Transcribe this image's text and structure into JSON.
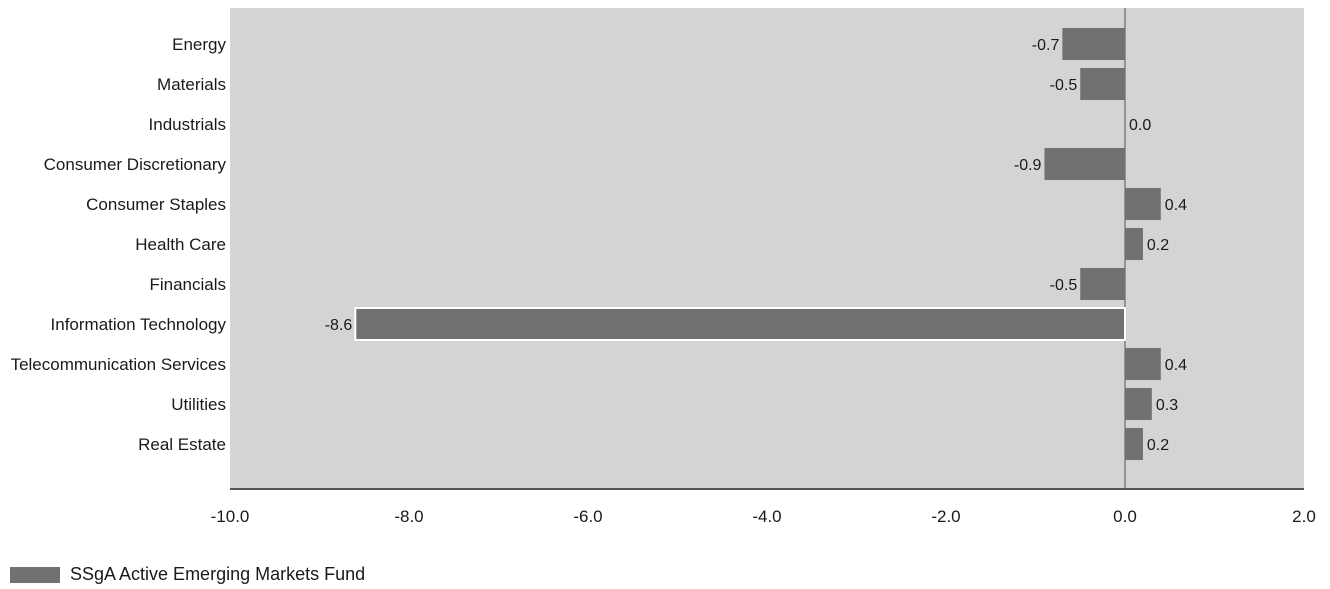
{
  "colors": {
    "plot_background": "#d4d4d4",
    "bar": "#717171",
    "bar_highlight_border": "#ffffff",
    "axis": "#555555"
  },
  "chart_data": {
    "type": "bar",
    "orientation": "horizontal",
    "categories": [
      "Energy",
      "Materials",
      "Industrials",
      "Consumer Discretionary",
      "Consumer Staples",
      "Health Care",
      "Financials",
      "Information Technology",
      "Telecommunication Services",
      "Utilities",
      "Real Estate"
    ],
    "series": [
      {
        "name": "SSgA Active Emerging Markets Fund",
        "values": [
          -0.7,
          -0.5,
          0.0,
          -0.9,
          0.4,
          0.2,
          -0.5,
          -8.6,
          0.4,
          0.3,
          0.2
        ],
        "value_labels": [
          "-0.7",
          "-0.5",
          "0.0",
          "-0.9",
          "0.4",
          "0.2",
          "-0.5",
          "-8.6",
          "0.4",
          "0.3",
          "0.2"
        ]
      }
    ],
    "highlighted_category": "Information Technology",
    "xlim": [
      -10.0,
      2.0
    ],
    "x_ticks": [
      -10.0,
      -8.0,
      -6.0,
      -4.0,
      -2.0,
      0.0,
      2.0
    ],
    "x_tick_labels": [
      "-10.0",
      "-8.0",
      "-6.0",
      "-4.0",
      "-2.0",
      "0.0",
      "2.0"
    ],
    "grid": false,
    "legend_position": "bottom-left"
  },
  "legend": {
    "label": "SSgA Active Emerging Markets Fund"
  }
}
